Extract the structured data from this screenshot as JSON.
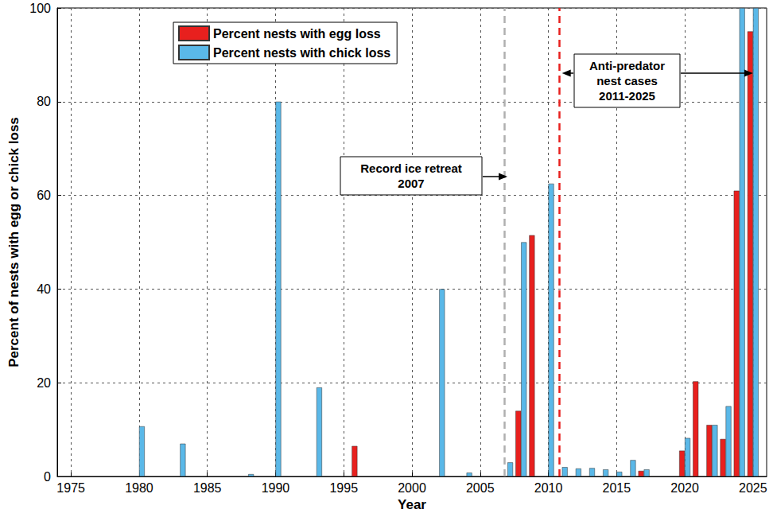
{
  "chart_data": {
    "type": "bar",
    "x_label": "Year",
    "y_label": "Percent of nests with egg or chick loss",
    "xlim": [
      1974,
      2026
    ],
    "xticks": [
      1975,
      1980,
      1985,
      1990,
      1995,
      2000,
      2005,
      2010,
      2015,
      2020,
      2025
    ],
    "ylim": [
      0,
      100
    ],
    "yticks": [
      0,
      20,
      40,
      60,
      80,
      100
    ],
    "grid": true,
    "legend": "top",
    "series": [
      {
        "name": "Percent nests with egg loss",
        "color": "#e8201e",
        "x": [
          1996,
          2008,
          2009,
          2017,
          2020,
          2021,
          2022,
          2023,
          2024,
          2025
        ],
        "values": [
          6.5,
          14,
          51.5,
          1.2,
          5.5,
          20.3,
          11,
          8,
          61,
          95
        ]
      },
      {
        "name": "Percent nests with chick loss",
        "color": "#5ab8e8",
        "x": [
          1980,
          1983,
          1988,
          1990,
          1993,
          2002,
          2004,
          2007,
          2008,
          2010,
          2011,
          2012,
          2013,
          2014,
          2015,
          2016,
          2017,
          2020,
          2022,
          2023,
          2024,
          2025
        ],
        "values": [
          10.7,
          7,
          0.5,
          80,
          19,
          40,
          0.8,
          3,
          50,
          62.5,
          2,
          1.7,
          1.8,
          1.5,
          1,
          3.5,
          1.5,
          8.2,
          11,
          15,
          100,
          100
        ]
      }
    ],
    "vlines": [
      {
        "x": 2007,
        "color": "#b0b0b0"
      },
      {
        "x": 2011,
        "color": "#e8201e"
      }
    ],
    "annotations": [
      {
        "lines": [
          "Record ice retreat",
          "2007"
        ],
        "arrow_to": [
          2007
        ]
      },
      {
        "lines": [
          "Anti-predator",
          "nest cases",
          "2011-2025"
        ],
        "arrow_to": [
          2011,
          2025
        ]
      }
    ]
  }
}
